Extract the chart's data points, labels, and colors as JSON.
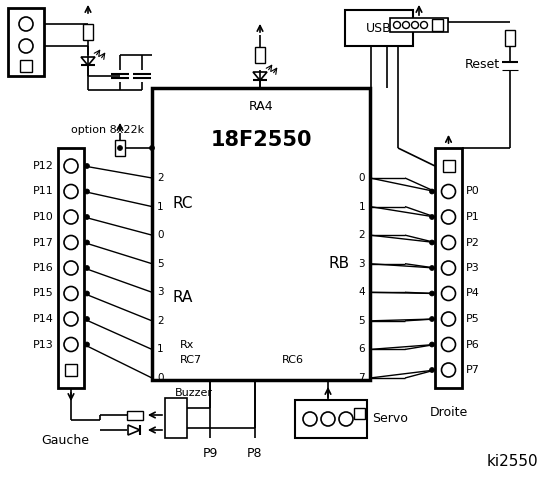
{
  "bg_color": "#ffffff",
  "line_color": "#000000",
  "title": "ki2550",
  "chip_label": "18F2550",
  "chip_sublabel": "RA4",
  "left_port_labels": [
    "P12",
    "P11",
    "P10",
    "P17",
    "P16",
    "P15",
    "P14",
    "P13"
  ],
  "right_port_labels": [
    "P0",
    "P1",
    "P2",
    "P3",
    "P4",
    "P5",
    "P6",
    "P7"
  ],
  "rc_pins": [
    "2",
    "1",
    "0",
    "5",
    "3",
    "2",
    "1",
    "0"
  ],
  "rb_pins": [
    "0",
    "1",
    "2",
    "3",
    "4",
    "5",
    "6",
    "7"
  ],
  "ra_label": "RA",
  "rc_label": "RC",
  "rb_label": "RB",
  "option_label": "option 8x22k",
  "reset_label": "Reset",
  "usb_label": "USB",
  "rx_label": "Rx",
  "rc7_label": "RC7",
  "rc6_label": "RC6",
  "gauche_label": "Gauche",
  "droite_label": "Droite",
  "buzzer_label": "Buzzer",
  "p9_label": "P9",
  "p8_label": "P8",
  "servo_label": "Servo"
}
